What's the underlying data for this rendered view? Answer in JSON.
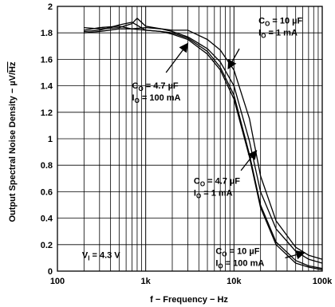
{
  "chart_data": {
    "type": "line",
    "title": "",
    "xlabel": "f − Frequency − Hz",
    "ylabel_main": "Output Spectral Noise Density − µV/",
    "ylabel_sqrt": "Hz",
    "x_scale": "log",
    "xlim": [
      100,
      100000
    ],
    "ylim": [
      0,
      2
    ],
    "grid": true,
    "x_ticks": [
      {
        "value": 100,
        "label": "100"
      },
      {
        "value": 1000,
        "label": "1k"
      },
      {
        "value": 10000,
        "label": "10k"
      },
      {
        "value": 100000,
        "label": "100k"
      }
    ],
    "y_ticks": [
      {
        "value": 0,
        "label": "0"
      },
      {
        "value": 0.2,
        "label": "0.2"
      },
      {
        "value": 0.4,
        "label": "0.4"
      },
      {
        "value": 0.6,
        "label": "0.6"
      },
      {
        "value": 0.8,
        "label": "0.8"
      },
      {
        "value": 1,
        "label": "1"
      },
      {
        "value": 1.2,
        "label": "1.2"
      },
      {
        "value": 1.4,
        "label": "1.4"
      },
      {
        "value": 1.6,
        "label": "1.6"
      },
      {
        "value": 1.8,
        "label": "1.8"
      },
      {
        "value": 2,
        "label": "2"
      }
    ],
    "series": [
      {
        "x": [
          200,
          300,
          500,
          700,
          800,
          1000,
          1500,
          2000,
          3000,
          5000,
          7000,
          10000,
          15000,
          20000,
          30000,
          50000,
          70000,
          100000
        ],
        "y": [
          1.84,
          1.83,
          1.84,
          1.87,
          1.91,
          1.85,
          1.83,
          1.82,
          1.82,
          1.75,
          1.67,
          1.52,
          1.15,
          0.72,
          0.38,
          0.18,
          0.12,
          0.09
        ]
      },
      {
        "x": [
          200,
          300,
          500,
          700,
          1000,
          1500,
          2000,
          3000,
          5000,
          7000,
          10000,
          15000,
          20000,
          30000,
          50000,
          70000,
          100000
        ],
        "y": [
          1.82,
          1.84,
          1.85,
          1.83,
          1.84,
          1.83,
          1.81,
          1.77,
          1.68,
          1.58,
          1.4,
          0.98,
          0.6,
          0.32,
          0.15,
          0.09,
          0.06
        ]
      },
      {
        "x": [
          200,
          300,
          500,
          700,
          1000,
          1500,
          2000,
          3000,
          5000,
          7000,
          10000,
          15000,
          20000,
          30000,
          50000,
          70000,
          100000
        ],
        "y": [
          1.81,
          1.82,
          1.86,
          1.88,
          1.82,
          1.81,
          1.8,
          1.76,
          1.66,
          1.54,
          1.33,
          0.88,
          0.5,
          0.22,
          0.08,
          0.04,
          0.02
        ]
      },
      {
        "x": [
          200,
          300,
          500,
          700,
          1000,
          1500,
          2000,
          3000,
          5000,
          7000,
          10000,
          15000,
          20000,
          30000,
          50000,
          70000,
          100000
        ],
        "y": [
          1.8,
          1.81,
          1.83,
          1.83,
          1.82,
          1.81,
          1.79,
          1.75,
          1.64,
          1.52,
          1.3,
          0.86,
          0.48,
          0.2,
          0.06,
          0.03,
          0.01
        ]
      }
    ],
    "annotations": [
      {
        "c_main": "C",
        "c_sub": "O",
        "c_value": " = 10 µF",
        "i_main": "I",
        "i_sub": "O",
        "i_value": " = 1 mA",
        "text_x": 19000,
        "text_y": 1.87,
        "arrow_from": [
          11500,
          1.68
        ],
        "arrow_to": [
          8600,
          1.53
        ]
      },
      {
        "c_main": "C",
        "c_sub": "O",
        "c_value": " = 4.7 µF",
        "i_main": "I",
        "i_sub": "O",
        "i_value": " = 100 mA",
        "text_x": 700,
        "text_y": 1.38,
        "arrow_from": [
          1700,
          1.5
        ],
        "arrow_to": [
          3000,
          1.72
        ]
      },
      {
        "c_main": "C",
        "c_sub": "O",
        "c_value": " = 4.7 µF",
        "i_main": "I",
        "i_sub": "O",
        "i_value": " = 1 mA",
        "text_x": 3500,
        "text_y": 0.66,
        "arrow_from": [
          12000,
          0.76
        ],
        "arrow_to": [
          18000,
          0.91
        ]
      },
      {
        "c_main": "C",
        "c_sub": "O",
        "c_value": " = 10 µF",
        "i_main": "I",
        "i_sub": "O",
        "i_value": " = 100 mA",
        "text_x": 6200,
        "text_y": 0.13,
        "arrow_from": [
          38000,
          0.1
        ],
        "arrow_to": [
          63000,
          0.14
        ]
      }
    ],
    "voltage_label": {
      "main": "V",
      "sub": "I",
      "value": " = 4.3 V",
      "text_x": 190,
      "text_y": 0.1
    }
  }
}
